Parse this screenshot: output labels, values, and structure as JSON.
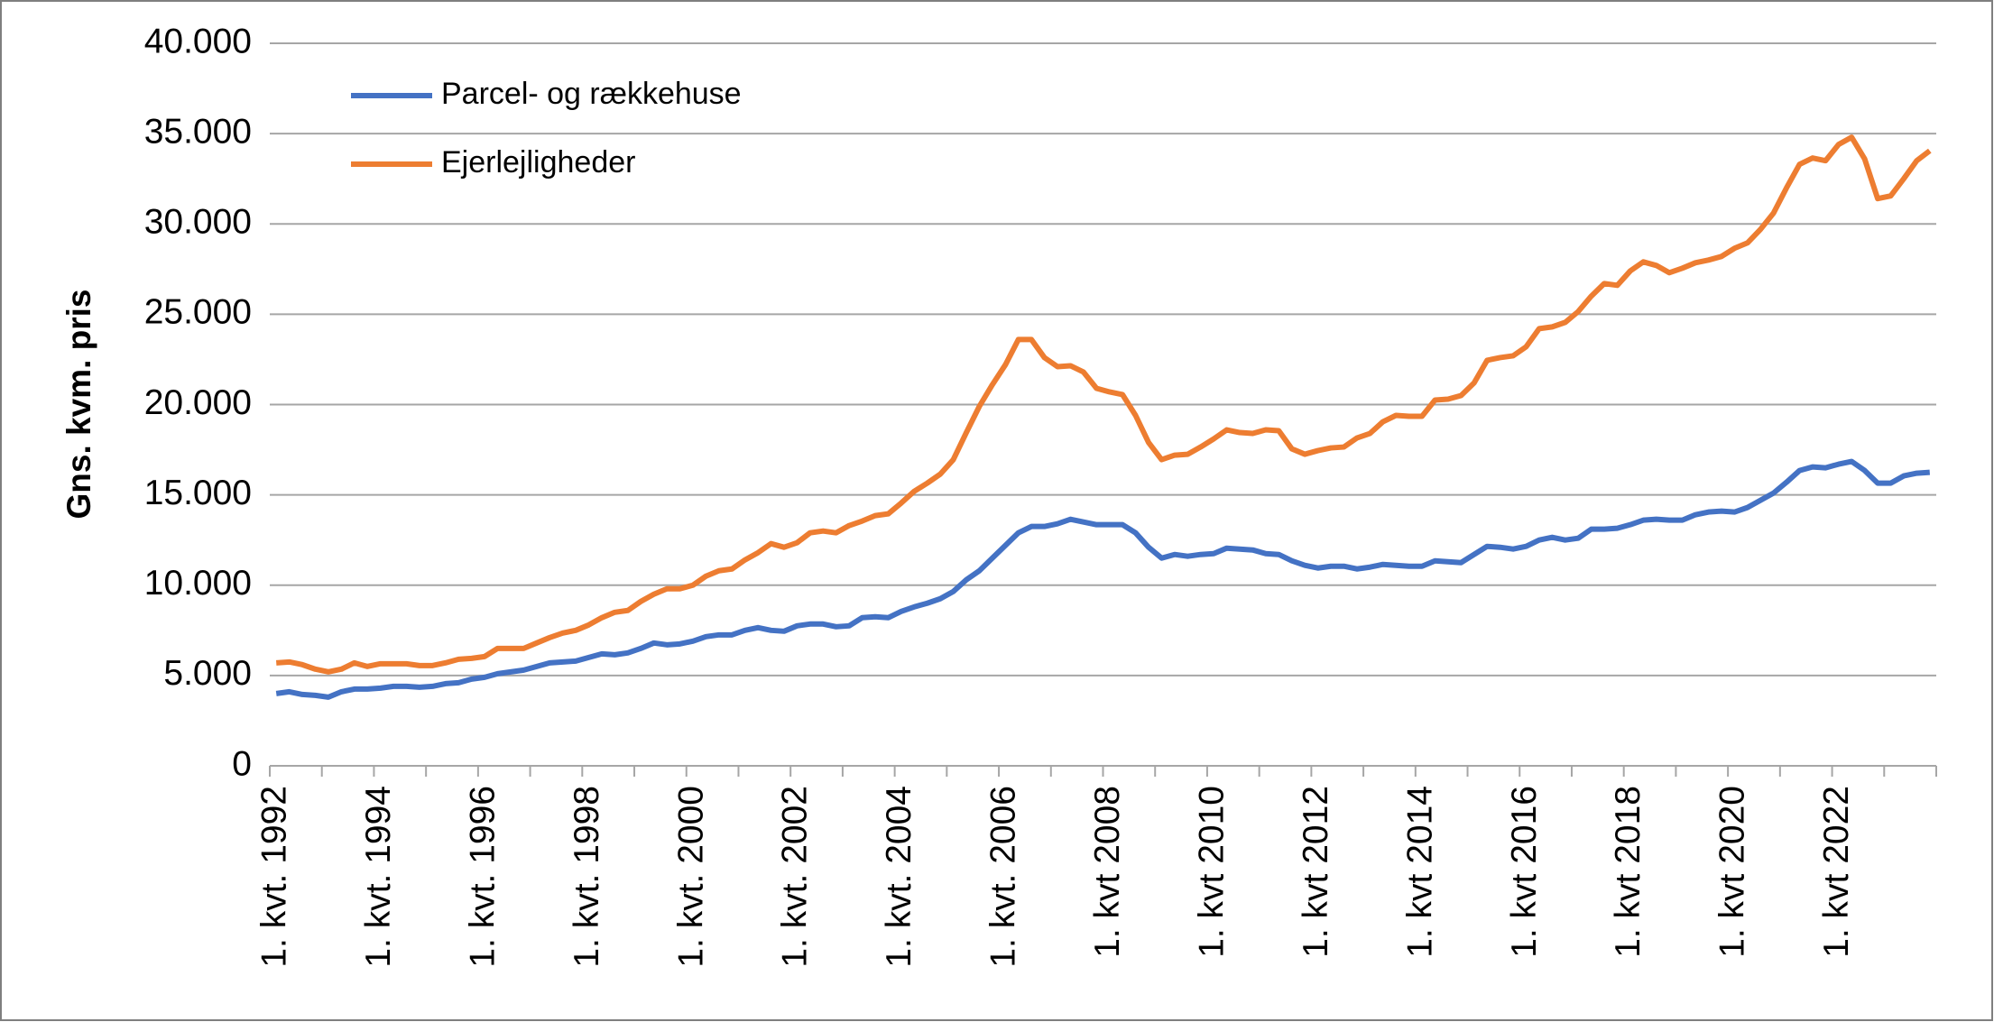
{
  "chart_data": {
    "type": "line",
    "categories": [
      "1. kvt. 1992",
      null,
      null,
      null,
      null,
      null,
      null,
      null,
      "1. kvt. 1994",
      null,
      null,
      null,
      null,
      null,
      null,
      null,
      "1. kvt. 1996",
      null,
      null,
      null,
      null,
      null,
      null,
      null,
      "1. kvt. 1998",
      null,
      null,
      null,
      null,
      null,
      null,
      null,
      "1. kvt. 2000",
      null,
      null,
      null,
      null,
      null,
      null,
      null,
      "1. kvt. 2002",
      null,
      null,
      null,
      null,
      null,
      null,
      null,
      "1. kvt. 2004",
      null,
      null,
      null,
      null,
      null,
      null,
      null,
      "1. kvt. 2006",
      null,
      null,
      null,
      null,
      null,
      null,
      null,
      "1. kvt 2008",
      null,
      null,
      null,
      null,
      null,
      null,
      null,
      "1. kvt 2010",
      null,
      null,
      null,
      null,
      null,
      null,
      null,
      "1. kvt 2012",
      null,
      null,
      null,
      null,
      null,
      null,
      null,
      "1. kvt 2014",
      null,
      null,
      null,
      null,
      null,
      null,
      null,
      "1. kvt 2016",
      null,
      null,
      null,
      null,
      null,
      null,
      null,
      "1. kvt 2018",
      null,
      null,
      null,
      null,
      null,
      null,
      null,
      "1. kvt 2020",
      null,
      null,
      null,
      null,
      null,
      null,
      null,
      "1. kvt 2022",
      null,
      null,
      null,
      null,
      null,
      null,
      null
    ],
    "series": [
      {
        "name": "Parcel- og rækkehuse",
        "color": "#4472c4",
        "values": [
          4000,
          4100,
          3950,
          3900,
          3800,
          4100,
          4250,
          4250,
          4300,
          4400,
          4400,
          4350,
          4400,
          4550,
          4600,
          4800,
          4900,
          5100,
          5200,
          5300,
          5500,
          5700,
          5750,
          5800,
          6000,
          6200,
          6150,
          6250,
          6500,
          6800,
          6700,
          6750,
          6900,
          7150,
          7250,
          7250,
          7500,
          7650,
          7500,
          7450,
          7750,
          7850,
          7850,
          7700,
          7750,
          8200,
          8250,
          8200,
          8550,
          8800,
          9000,
          9250,
          9650,
          10300,
          10800,
          11500,
          12200,
          12900,
          13250,
          13250,
          13400,
          13650,
          13500,
          13350,
          13350,
          13350,
          12900,
          12100,
          11500,
          11700,
          11600,
          11700,
          11750,
          12050,
          12000,
          11950,
          11750,
          11700,
          11350,
          11100,
          10950,
          11050,
          11050,
          10900,
          11000,
          11150,
          11100,
          11050,
          11050,
          11350,
          11300,
          11250,
          11700,
          12150,
          12100,
          12000,
          12150,
          12500,
          12650,
          12500,
          12600,
          13100,
          13100,
          13150,
          13350,
          13600,
          13650,
          13600,
          13600,
          13900,
          14050,
          14100,
          14050,
          14300,
          14700,
          15100,
          15700,
          16350,
          16550,
          16500,
          16700,
          16850,
          16350,
          15650,
          15650,
          16050,
          16200,
          16250
        ]
      },
      {
        "name": "Ejerlejligheder",
        "color": "#ed7d31",
        "values": [
          5700,
          5750,
          5600,
          5350,
          5200,
          5350,
          5700,
          5500,
          5650,
          5650,
          5650,
          5550,
          5550,
          5700,
          5900,
          5950,
          6050,
          6500,
          6500,
          6500,
          6800,
          7100,
          7350,
          7500,
          7800,
          8200,
          8500,
          8600,
          9100,
          9500,
          9800,
          9800,
          10000,
          10500,
          10800,
          10900,
          11400,
          11800,
          12300,
          12100,
          12350,
          12900,
          13000,
          12900,
          13300,
          13550,
          13850,
          13950,
          14550,
          15200,
          15650,
          16150,
          16950,
          18450,
          19900,
          21100,
          22200,
          23600,
          23600,
          22600,
          22100,
          22150,
          21800,
          20900,
          20700,
          20550,
          19400,
          17900,
          16950,
          17200,
          17250,
          17650,
          18100,
          18600,
          18450,
          18400,
          18600,
          18550,
          17550,
          17250,
          17450,
          17600,
          17650,
          18150,
          18400,
          19050,
          19400,
          19350,
          19350,
          20250,
          20300,
          20500,
          21200,
          22450,
          22600,
          22700,
          23200,
          24200,
          24300,
          24550,
          25150,
          26000,
          26700,
          26600,
          27400,
          27900,
          27700,
          27300,
          27550,
          27850,
          28000,
          28200,
          28650,
          28950,
          29700,
          30600,
          32000,
          33300,
          33650,
          33500,
          34400,
          34800,
          33600,
          31400,
          31550,
          32500,
          33500,
          34050
        ]
      }
    ],
    "y_label": "Gns. kvm. pris",
    "ylim": [
      0,
      40000
    ],
    "yticks": [
      0,
      {
        "value": 5000,
        "label": "5.000"
      },
      {
        "value": 10000,
        "label": "10.000"
      },
      {
        "value": 15000,
        "label": "15.000"
      },
      {
        "value": 20000,
        "label": "20.000"
      },
      {
        "value": 25000,
        "label": "25.000"
      },
      {
        "value": 30000,
        "label": "30.000"
      },
      {
        "value": 35000,
        "label": "35.000"
      },
      {
        "value": 40000,
        "label": "40.000"
      }
    ],
    "grid": true,
    "legend": "upper left"
  }
}
